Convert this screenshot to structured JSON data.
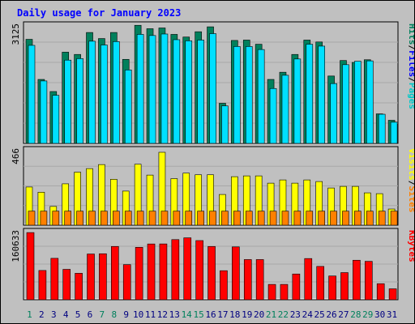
{
  "title": "Daily usage for January 2023",
  "colors": {
    "background": "#c0c0c0",
    "title": "#0000ff",
    "hits": "#00805c",
    "files": "#00e0ff",
    "pages": "#00c8c8",
    "visits": "#ffff00",
    "sites": "#ff8000",
    "kbytes": "#ff0000",
    "day_weekday": "#000080",
    "day_weekend": "#00805c"
  },
  "panels": {
    "hits": {
      "max_label": "3125",
      "legend": [
        {
          "text": "Pages",
          "color": "#00c8c8"
        },
        {
          "text": "Files",
          "color": "#0000ff"
        },
        {
          "text": "Hits",
          "color": "#00805c"
        }
      ]
    },
    "visits": {
      "max_label": "466",
      "legend": [
        {
          "text": "Sites",
          "color": "#ff8000"
        },
        {
          "text": "Visits",
          "color": "#ffff00"
        }
      ]
    },
    "kbytes": {
      "max_label": "160633",
      "legend": [
        {
          "text": "KBytes",
          "color": "#ff0000"
        }
      ]
    }
  },
  "chart_data": {
    "type": "bar",
    "title": "Daily usage for January 2023",
    "categories": [
      "1",
      "2",
      "3",
      "4",
      "5",
      "6",
      "7",
      "8",
      "9",
      "10",
      "11",
      "12",
      "13",
      "14",
      "15",
      "16",
      "17",
      "18",
      "19",
      "20",
      "21",
      "22",
      "23",
      "24",
      "25",
      "26",
      "27",
      "28",
      "29",
      "30",
      "31"
    ],
    "weekend_days": [
      "1",
      "7",
      "8",
      "14",
      "15",
      "21",
      "22",
      "28",
      "29"
    ],
    "hits_panel": {
      "ymax_label": "3125",
      "ylim": [
        0,
        3125
      ],
      "series": [
        {
          "name": "Hits",
          "values": [
            2750,
            1690,
            1370,
            2410,
            2350,
            2930,
            2770,
            2930,
            2220,
            3120,
            3030,
            3050,
            2880,
            2810,
            2950,
            3080,
            1060,
            2720,
            2730,
            2620,
            1690,
            1880,
            2350,
            2730,
            2680,
            1780,
            2190,
            2140,
            2210,
            780,
            610
          ]
        },
        {
          "name": "Files",
          "values": [
            2590,
            1650,
            1270,
            2200,
            2240,
            2700,
            2600,
            2690,
            1940,
            2880,
            2850,
            2890,
            2740,
            2710,
            2730,
            2900,
            990,
            2560,
            2560,
            2480,
            1450,
            1800,
            2230,
            2620,
            2570,
            1580,
            2080,
            2170,
            2180,
            770,
            560
          ]
        },
        {
          "name": "Pages",
          "values": [
            2590,
            1650,
            1270,
            2200,
            2240,
            2700,
            2600,
            2690,
            1940,
            2880,
            2850,
            2890,
            2740,
            2710,
            2730,
            2900,
            990,
            2560,
            2560,
            2480,
            1450,
            1800,
            2230,
            2620,
            2570,
            1580,
            2080,
            2170,
            2180,
            770,
            560
          ]
        }
      ]
    },
    "visits_panel": {
      "ymax_label": "466",
      "ylim": [
        0,
        466
      ],
      "series": [
        {
          "name": "Visits",
          "values": [
            236,
            204,
            116,
            256,
            328,
            350,
            375,
            284,
            211,
            377,
            310,
            451,
            288,
            322,
            312,
            312,
            190,
            300,
            305,
            305,
            260,
            280,
            260,
            280,
            270,
            230,
            240,
            240,
            200,
            195,
            100
          ]
        },
        {
          "name": "Sites",
          "values": [
            87,
            87,
            87,
            87,
            87,
            87,
            87,
            87,
            87,
            87,
            87,
            87,
            87,
            87,
            87,
            87,
            87,
            87,
            87,
            87,
            87,
            87,
            87,
            87,
            87,
            87,
            87,
            87,
            87,
            87,
            87
          ]
        }
      ]
    },
    "kbytes_panel": {
      "ymax_label": "160633",
      "ylim": [
        0,
        160633
      ],
      "series": [
        {
          "name": "KBytes",
          "values": [
            158500,
            69000,
            97700,
            71700,
            62400,
            107900,
            108500,
            125700,
            82800,
            123700,
            131600,
            131700,
            141900,
            146100,
            139600,
            125700,
            68500,
            124700,
            94800,
            94800,
            36100,
            36100,
            60700,
            97200,
            78600,
            56000,
            64000,
            93200,
            90600,
            37800,
            25700
          ]
        }
      ]
    }
  }
}
